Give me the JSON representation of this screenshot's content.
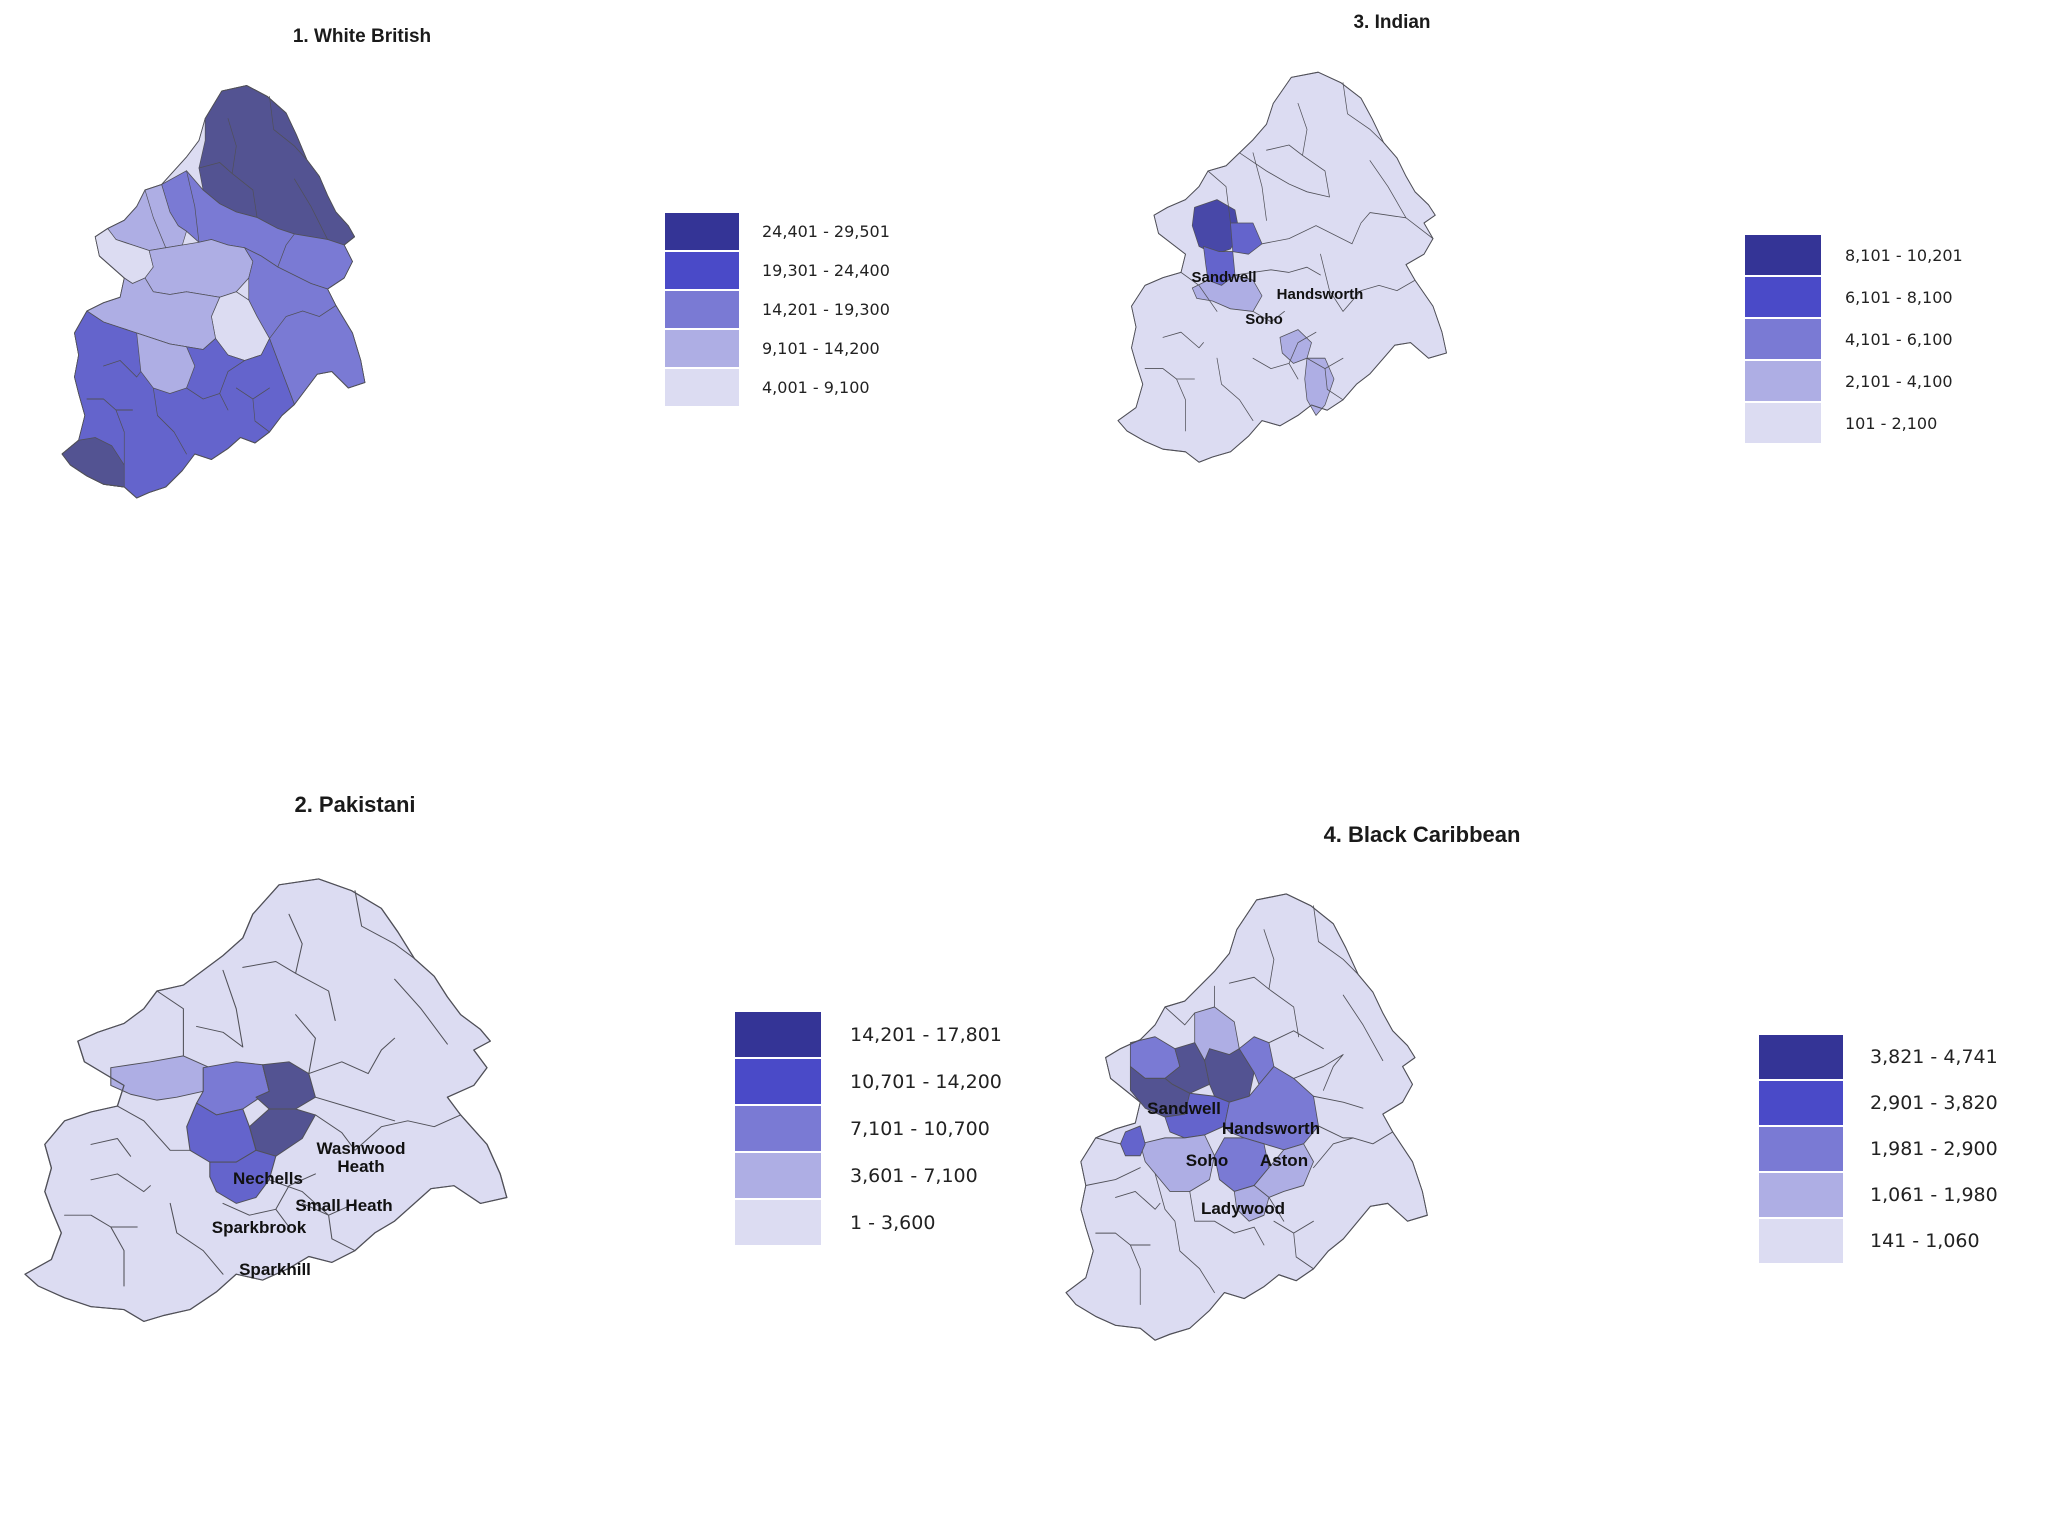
{
  "maps": [
    {
      "id": "white-british",
      "title": "1. White British",
      "legend": [
        {
          "range": "24,401 - 29,501",
          "color": "#343496"
        },
        {
          "range": "19,301 - 24,400",
          "color": "#4a4ac8"
        },
        {
          "range": "14,201 - 19,300",
          "color": "#7a7ad4"
        },
        {
          "range": "9,101 - 14,200",
          "color": "#aeaee4"
        },
        {
          "range": "4,001 - 9,100",
          "color": "#dcdcf2"
        }
      ],
      "labels": []
    },
    {
      "id": "indian",
      "title": "3. Indian",
      "legend": [
        {
          "range": "8,101 - 10,201",
          "color": "#343496"
        },
        {
          "range": "6,101 - 8,100",
          "color": "#4a4ac8"
        },
        {
          "range": "4,101 - 6,100",
          "color": "#7a7ad4"
        },
        {
          "range": "2,101 - 4,100",
          "color": "#aeaee4"
        },
        {
          "range": "101 - 2,100",
          "color": "#dcdcf2"
        }
      ],
      "labels": [
        {
          "text": "Sandwell"
        },
        {
          "text": "Handsworth"
        },
        {
          "text": "Soho"
        }
      ]
    },
    {
      "id": "pakistani",
      "title": "2. Pakistani",
      "legend": [
        {
          "range": "14,201 - 17,801",
          "color": "#343496"
        },
        {
          "range": "10,701 - 14,200",
          "color": "#4a4ac8"
        },
        {
          "range": "7,101 - 10,700",
          "color": "#7a7ad4"
        },
        {
          "range": "3,601 - 7,100",
          "color": "#aeaee4"
        },
        {
          "range": "1 - 3,600",
          "color": "#dcdcf2"
        }
      ],
      "labels": [
        {
          "text": "Washwood\nHeath"
        },
        {
          "text": "Nechells"
        },
        {
          "text": "Small Heath"
        },
        {
          "text": "Sparkbrook"
        },
        {
          "text": "Sparkhill"
        }
      ]
    },
    {
      "id": "black-caribbean",
      "title": "4. Black Caribbean",
      "legend": [
        {
          "range": "3,821 - 4,741",
          "color": "#343496"
        },
        {
          "range": "2,901 - 3,820",
          "color": "#4a4ac8"
        },
        {
          "range": "1,981 - 2,900",
          "color": "#7a7ad4"
        },
        {
          "range": "1,061 - 1,980",
          "color": "#aeaee4"
        },
        {
          "range": "141 - 1,060",
          "color": "#dcdcf2"
        }
      ],
      "labels": [
        {
          "text": "Sandwell"
        },
        {
          "text": "Handsworth"
        },
        {
          "text": "Soho"
        },
        {
          "text": "Aston"
        },
        {
          "text": "Ladywood"
        }
      ]
    }
  ]
}
